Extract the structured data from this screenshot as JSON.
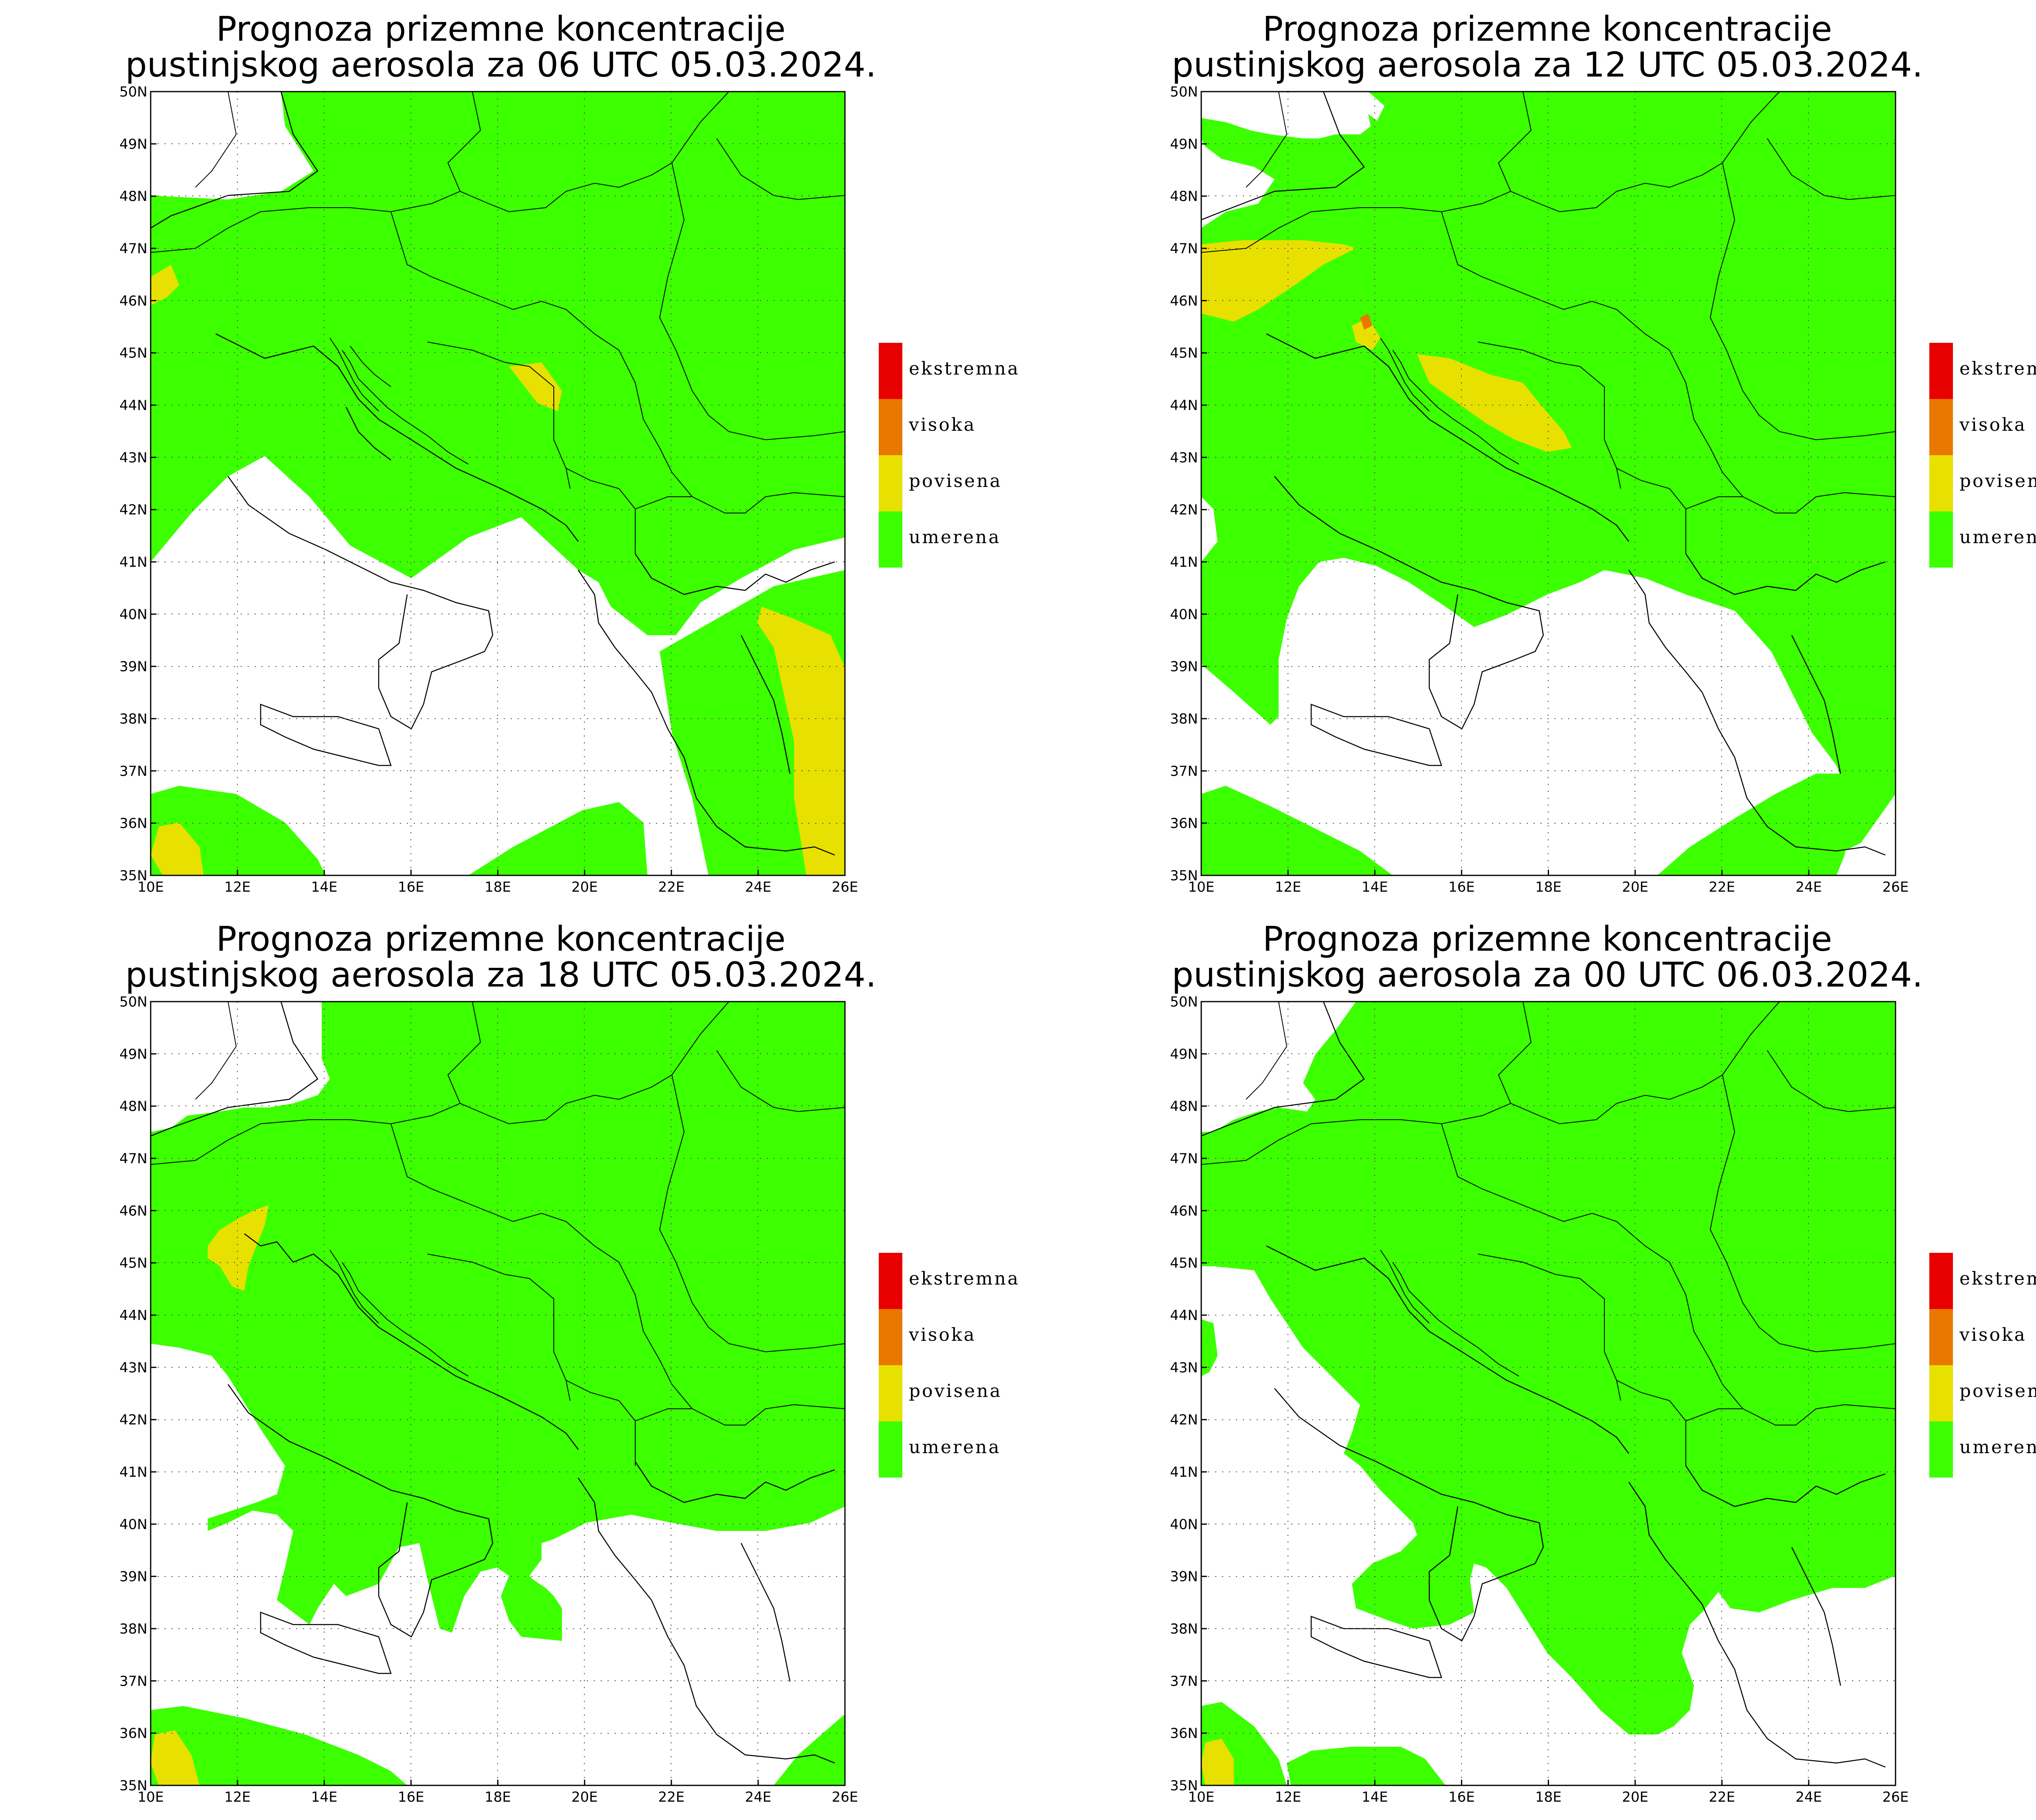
{
  "colors": {
    "umerena": "#3cff00",
    "povisena": "#e8e000",
    "visoka": "#e87800",
    "ekstremna": "#e80000",
    "grid": "#555555",
    "border": "#000000"
  },
  "axes": {
    "lon_labels": [
      "10E",
      "12E",
      "14E",
      "16E",
      "18E",
      "20E",
      "22E",
      "24E",
      "26E"
    ],
    "lat_labels": [
      "35N",
      "36N",
      "37N",
      "38N",
      "39N",
      "40N",
      "41N",
      "42N",
      "43N",
      "44N",
      "45N",
      "46N",
      "47N",
      "48N",
      "49N",
      "50N"
    ]
  },
  "legend": [
    {
      "label": "ekstremna",
      "color_key": "ekstremna"
    },
    {
      "label": "visoka",
      "color_key": "visoka"
    },
    {
      "label": "povisena",
      "color_key": "povisena"
    },
    {
      "label": "umerena",
      "color_key": "umerena"
    }
  ],
  "panels": [
    {
      "title_line1": "Prognoza prizemne koncentracije",
      "title_line2": "pustinjskog aerosola za 06 UTC 05.03.2024."
    },
    {
      "title_line1": "Prognoza prizemne koncentracije",
      "title_line2": "pustinjskog aerosola za 12 UTC 05.03.2024."
    },
    {
      "title_line1": "Prognoza prizemne koncentracije",
      "title_line2": "pustinjskog aerosola za 18 UTC 05.03.2024."
    },
    {
      "title_line1": "Prognoza prizemne koncentracije",
      "title_line2": "pustinjskog aerosola za 00 UTC 06.03.2024."
    }
  ]
}
